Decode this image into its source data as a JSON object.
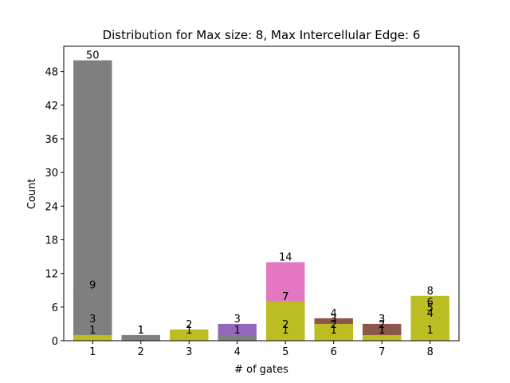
{
  "chart_data": {
    "type": "bar",
    "title": "Distribution for Max size: 8, Max Intercellular Edge: 6",
    "xlabel": "# of gates",
    "ylabel": "Count",
    "categories": [
      "1",
      "2",
      "3",
      "4",
      "5",
      "6",
      "7",
      "8"
    ],
    "ylim": [
      0,
      52.5
    ],
    "yticks": [
      0,
      6,
      12,
      18,
      24,
      30,
      36,
      42,
      48
    ],
    "grid": false,
    "colors": {
      "gray": "#7f7f7f",
      "olive": "#bcbd22",
      "purple": "#9467bd",
      "pink": "#e377c2",
      "brown": "#8c564b"
    },
    "bars": [
      {
        "category": "1",
        "segments": [
          {
            "value": 50,
            "color": "gray",
            "label": "50"
          },
          {
            "value": 9,
            "color": "gray",
            "label": "9"
          },
          {
            "value": 3,
            "color": "gray",
            "label": "3"
          },
          {
            "value": 1,
            "color": "olive",
            "label": "1"
          }
        ]
      },
      {
        "category": "2",
        "segments": [
          {
            "value": 1,
            "color": "gray",
            "label": "1"
          },
          {
            "value": 1,
            "color": "gray",
            "label": "1"
          }
        ]
      },
      {
        "category": "3",
        "segments": [
          {
            "value": 2,
            "color": "olive",
            "label": "2"
          },
          {
            "value": 1,
            "color": "olive",
            "label": "1"
          }
        ]
      },
      {
        "category": "4",
        "segments": [
          {
            "value": 3,
            "color": "purple",
            "label": "3"
          },
          {
            "value": 1,
            "color": "gray",
            "label": "1"
          }
        ]
      },
      {
        "category": "5",
        "segments": [
          {
            "value": 14,
            "color": "pink",
            "label": "14"
          },
          {
            "value": 7,
            "color": "olive",
            "label": "7"
          },
          {
            "value": 7,
            "color": "olive",
            "label": "7"
          },
          {
            "value": 2,
            "color": "olive",
            "label": "2"
          },
          {
            "value": 1,
            "color": "olive",
            "label": "1"
          }
        ]
      },
      {
        "category": "6",
        "segments": [
          {
            "value": 4,
            "color": "brown",
            "label": "4"
          },
          {
            "value": 3,
            "color": "olive",
            "label": "3"
          },
          {
            "value": 2,
            "color": "olive",
            "label": "2"
          },
          {
            "value": 1,
            "color": "olive",
            "label": "1"
          }
        ]
      },
      {
        "category": "7",
        "segments": [
          {
            "value": 3,
            "color": "brown",
            "label": "3"
          },
          {
            "value": 2,
            "color": "brown",
            "label": "2"
          },
          {
            "value": 1,
            "color": "olive",
            "label": "1"
          },
          {
            "value": 1,
            "color": "olive",
            "label": "1"
          }
        ]
      },
      {
        "category": "8",
        "segments": [
          {
            "value": 8,
            "color": "olive",
            "label": "8"
          },
          {
            "value": 6,
            "color": "olive",
            "label": "6"
          },
          {
            "value": 5,
            "color": "olive",
            "label": "5"
          },
          {
            "value": 4,
            "color": "olive",
            "label": "4"
          },
          {
            "value": 1,
            "color": "olive",
            "label": "1"
          }
        ]
      }
    ]
  }
}
